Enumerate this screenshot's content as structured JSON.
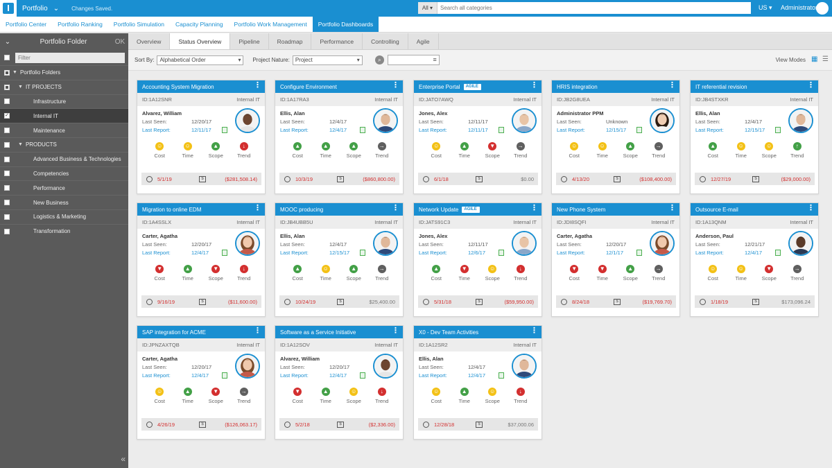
{
  "topbar": {
    "app_name": "Portfolio",
    "status": "Changes Saved.",
    "search_scope": "All",
    "search_placeholder": "Search all categories",
    "locale": "US",
    "user": "Administrator"
  },
  "modules": [
    "Portfolio Center",
    "Portfolio Ranking",
    "Portfolio Simulation",
    "Capacity Planning",
    "Portfolio Work Management",
    "Portfolio Dashboards"
  ],
  "active_module": 5,
  "sidebar": {
    "title": "Portfolio Folder",
    "ok": "OK",
    "filter_placeholder": "Filter",
    "items": [
      {
        "label": "Portfolio Folders",
        "level": 0,
        "caret": true,
        "check": "partial"
      },
      {
        "label": "IT PROJECTS",
        "level": 1,
        "caret": true,
        "check": "partial"
      },
      {
        "label": "Infrastructure",
        "level": 2,
        "caret": false,
        "check": "none"
      },
      {
        "label": "Internal IT",
        "level": 2,
        "caret": false,
        "check": "checked",
        "active": true
      },
      {
        "label": "Maintenance",
        "level": 2,
        "caret": false,
        "check": "none"
      },
      {
        "label": "PRODUCTS",
        "level": 1,
        "caret": true,
        "check": "none"
      },
      {
        "label": "Advanced Business & Technologies",
        "level": 2,
        "caret": false,
        "check": "none"
      },
      {
        "label": "Competencies",
        "level": 2,
        "caret": false,
        "check": "none"
      },
      {
        "label": "Performance",
        "level": 2,
        "caret": false,
        "check": "none"
      },
      {
        "label": "New Business",
        "level": 2,
        "caret": false,
        "check": "none"
      },
      {
        "label": "Logistics & Marketing",
        "level": 2,
        "caret": false,
        "check": "none"
      },
      {
        "label": "Transformation",
        "level": 2,
        "caret": false,
        "check": "none"
      }
    ]
  },
  "view_tabs": [
    "Overview",
    "Status Overview",
    "Pipeline",
    "Roadmap",
    "Performance",
    "Controlling",
    "Agile"
  ],
  "active_view_tab": 1,
  "filters": {
    "sort_by_label": "Sort By:",
    "sort_by_value": "Alphabetical Order",
    "nature_label": "Project Nature:",
    "nature_value": "Project",
    "view_modes_label": "View Modes"
  },
  "kpi_labels": [
    "Cost",
    "Time",
    "Scope",
    "Trend"
  ],
  "labels": {
    "last_seen": "Last Seen:",
    "last_report": "Last Report:"
  },
  "colors": {
    "yellow": "#f3c116",
    "green": "#43a047",
    "red": "#d32f2f",
    "grey": "#5f5f5f",
    "blue": "#1a8fd1"
  },
  "cards": [
    {
      "title": "Accounting System Migration",
      "agile": false,
      "id": "ID:1A12SNR",
      "category": "Internal IT",
      "owner": "Alvarez, William",
      "last_seen": "12/20/17",
      "last_report": "12/11/17",
      "avatar": "dark-male",
      "kpi": [
        {
          "c": "yellow",
          "g": "smile"
        },
        {
          "c": "yellow",
          "g": "smile"
        },
        {
          "c": "green",
          "g": "thumb-up"
        },
        {
          "c": "red",
          "g": "down"
        }
      ],
      "date": "5/1/19",
      "date_red": true,
      "amount": "($281,508.14)",
      "amount_red": true
    },
    {
      "title": "Configure Environment",
      "agile": false,
      "id": "ID:1A17RA3",
      "category": "Internal IT",
      "owner": "Ellis, Alan",
      "last_seen": "12/4/17",
      "last_report": "12/4/17",
      "avatar": "male-2",
      "kpi": [
        {
          "c": "green",
          "g": "thumb-up"
        },
        {
          "c": "green",
          "g": "thumb-up"
        },
        {
          "c": "green",
          "g": "thumb-up"
        },
        {
          "c": "grey",
          "g": "right"
        }
      ],
      "date": "10/3/19",
      "date_red": true,
      "amount": "($860,800.00)",
      "amount_red": true
    },
    {
      "title": "Enterprise Portal",
      "agile": true,
      "agile_label": "AGILE",
      "id": "ID:JATO7AWQ",
      "category": "Internal IT",
      "owner": "Jones, Alex",
      "last_seen": "12/11/17",
      "last_report": "12/11/17",
      "avatar": "male-3",
      "kpi": [
        {
          "c": "yellow",
          "g": "smile"
        },
        {
          "c": "green",
          "g": "thumb-up"
        },
        {
          "c": "red",
          "g": "thumb-down"
        },
        {
          "c": "grey",
          "g": "right"
        }
      ],
      "date": "6/1/18",
      "date_red": true,
      "amount": "$0.00",
      "amount_red": false
    },
    {
      "title": "HRIS integration",
      "agile": false,
      "id": "ID:JB2G8UEA",
      "category": "Internal IT",
      "owner": "Administrator PPM",
      "last_seen": "Unknown",
      "last_report": "12/15/17",
      "avatar": "female-1",
      "kpi": [
        {
          "c": "yellow",
          "g": "smile"
        },
        {
          "c": "yellow",
          "g": "smile"
        },
        {
          "c": "green",
          "g": "thumb-up"
        },
        {
          "c": "grey",
          "g": "right"
        }
      ],
      "date": "4/13/20",
      "date_red": true,
      "amount": "($108,400.00)",
      "amount_red": true
    },
    {
      "title": "IT referential revision",
      "agile": false,
      "id": "ID:JB4STXKR",
      "category": "Internal IT",
      "owner": "Ellis, Alan",
      "last_seen": "12/4/17",
      "last_report": "12/15/17",
      "avatar": "male-2",
      "kpi": [
        {
          "c": "green",
          "g": "thumb-up"
        },
        {
          "c": "yellow",
          "g": "smile"
        },
        {
          "c": "yellow",
          "g": "smile"
        },
        {
          "c": "green",
          "g": "up"
        }
      ],
      "date": "12/27/19",
      "date_red": true,
      "amount": "($29,000.00)",
      "amount_red": true
    },
    {
      "title": "Migration to online EDM",
      "agile": false,
      "id": "ID:1A4SSLX",
      "category": "Internal IT",
      "owner": "Carter, Agatha",
      "last_seen": "12/20/17",
      "last_report": "12/4/17",
      "avatar": "female-2",
      "kpi": [
        {
          "c": "red",
          "g": "thumb-down"
        },
        {
          "c": "green",
          "g": "thumb-up"
        },
        {
          "c": "red",
          "g": "thumb-down"
        },
        {
          "c": "red",
          "g": "down"
        }
      ],
      "date": "9/16/19",
      "date_red": true,
      "amount": "($11,600.00)",
      "amount_red": true
    },
    {
      "title": "MOOC producing",
      "agile": false,
      "id": "ID:JB4UBB5U",
      "category": "Internal IT",
      "owner": "Ellis, Alan",
      "last_seen": "12/4/17",
      "last_report": "12/15/17",
      "avatar": "male-2",
      "kpi": [
        {
          "c": "green",
          "g": "thumb-up"
        },
        {
          "c": "yellow",
          "g": "smile"
        },
        {
          "c": "green",
          "g": "thumb-up"
        },
        {
          "c": "grey",
          "g": "right"
        }
      ],
      "date": "10/24/19",
      "date_red": true,
      "amount": "$25,400.00",
      "amount_red": false
    },
    {
      "title": "Network Update",
      "agile": true,
      "agile_label": "AGILE",
      "id": "ID:JATS91C3",
      "category": "Internal IT",
      "owner": "Jones, Alex",
      "last_seen": "12/11/17",
      "last_report": "12/6/17",
      "avatar": "male-3",
      "kpi": [
        {
          "c": "green",
          "g": "thumb-up"
        },
        {
          "c": "red",
          "g": "thumb-down"
        },
        {
          "c": "yellow",
          "g": "smile"
        },
        {
          "c": "red",
          "g": "down"
        }
      ],
      "date": "5/31/18",
      "date_red": true,
      "amount": "($59,950.00)",
      "amount_red": true
    },
    {
      "title": "New Phone System",
      "agile": false,
      "id": "ID:JDI8SQFI",
      "category": "Internal IT",
      "owner": "Carter, Agatha",
      "last_seen": "12/20/17",
      "last_report": "12/1/17",
      "avatar": "female-2",
      "kpi": [
        {
          "c": "red",
          "g": "thumb-down"
        },
        {
          "c": "red",
          "g": "thumb-down"
        },
        {
          "c": "green",
          "g": "thumb-up"
        },
        {
          "c": "grey",
          "g": "right"
        }
      ],
      "date": "8/24/18",
      "date_red": true,
      "amount": "($19,769.70)",
      "amount_red": true
    },
    {
      "title": "Outsource E-mail",
      "agile": false,
      "id": "ID:1A13QNM",
      "category": "Internal IT",
      "owner": "Anderson, Paul",
      "last_seen": "12/21/17",
      "last_report": "12/4/17",
      "avatar": "dark-male-2",
      "kpi": [
        {
          "c": "yellow",
          "g": "smile"
        },
        {
          "c": "yellow",
          "g": "smile"
        },
        {
          "c": "red",
          "g": "thumb-down"
        },
        {
          "c": "grey",
          "g": "right"
        }
      ],
      "date": "1/18/19",
      "date_red": true,
      "amount": "$173,096.24",
      "amount_red": false
    },
    {
      "title": "SAP integration for ACME",
      "agile": false,
      "id": "ID:JPNZAXTQB",
      "category": "Internal IT",
      "owner": "Carter, Agatha",
      "last_seen": "12/20/17",
      "last_report": "12/4/17",
      "avatar": "female-2",
      "kpi": [
        {
          "c": "yellow",
          "g": "smile"
        },
        {
          "c": "green",
          "g": "thumb-up"
        },
        {
          "c": "red",
          "g": "thumb-down"
        },
        {
          "c": "grey",
          "g": "right"
        }
      ],
      "date": "4/26/19",
      "date_red": true,
      "amount": "($126,063.17)",
      "amount_red": true
    },
    {
      "title": "Software as a Service Initiative",
      "agile": false,
      "id": "ID:1A12SOV",
      "category": "Internal IT",
      "owner": "Alvarez, William",
      "last_seen": "12/20/17",
      "last_report": "12/4/17",
      "avatar": "dark-male",
      "kpi": [
        {
          "c": "red",
          "g": "thumb-down"
        },
        {
          "c": "green",
          "g": "thumb-up"
        },
        {
          "c": "yellow",
          "g": "smile"
        },
        {
          "c": "red",
          "g": "down"
        }
      ],
      "date": "5/2/18",
      "date_red": true,
      "amount": "($2,336.00)",
      "amount_red": true
    },
    {
      "title": "X0 - Dev Team Activities",
      "agile": false,
      "id": "ID:1A12SR2",
      "category": "Internal IT",
      "owner": "Ellis, Alan",
      "last_seen": "12/4/17",
      "last_report": "12/4/17",
      "avatar": "male-2",
      "kpi": [
        {
          "c": "yellow",
          "g": "smile"
        },
        {
          "c": "green",
          "g": "thumb-up"
        },
        {
          "c": "yellow",
          "g": "smile"
        },
        {
          "c": "red",
          "g": "down"
        }
      ],
      "date": "12/28/18",
      "date_red": true,
      "amount": "$37,000.06",
      "amount_red": false
    }
  ]
}
